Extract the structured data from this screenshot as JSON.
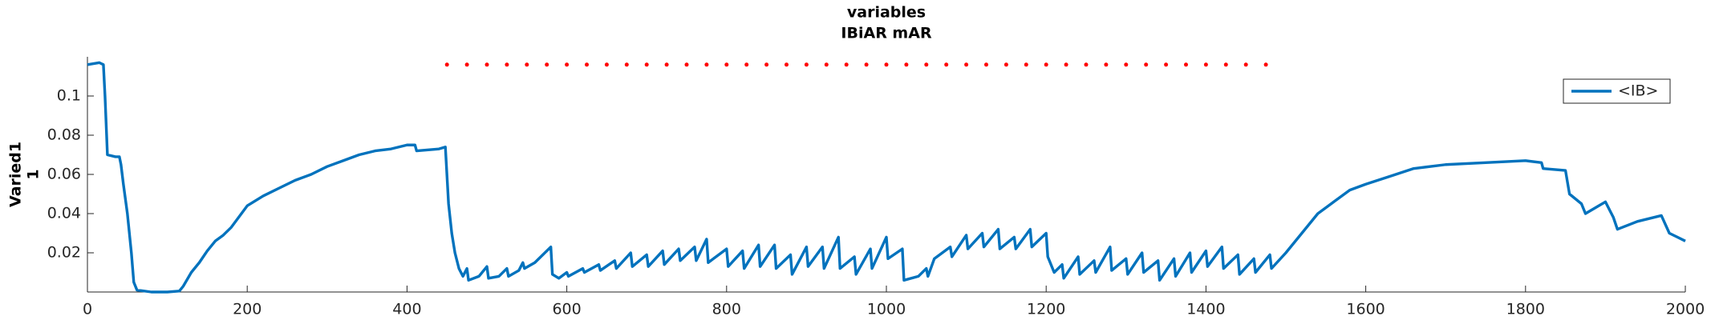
{
  "chart_data": {
    "type": "line",
    "title": [
      "variables",
      "IBiAR mAR"
    ],
    "ylabel": [
      "Varied1",
      "1"
    ],
    "xlim": [
      0,
      2000
    ],
    "xticks": [
      0,
      200,
      400,
      600,
      800,
      1000,
      1200,
      1400,
      1600,
      1800,
      2000
    ],
    "ylim": [
      0,
      0.12
    ],
    "yticks": [
      0.02,
      0.04,
      0.06,
      0.08,
      0.1
    ],
    "grid": false,
    "legend": "upper right",
    "series": [
      {
        "name": "<IB>",
        "color": "#0072bd",
        "style": "line",
        "x": [
          0,
          15,
          20,
          22,
          25,
          35,
          40,
          42,
          45,
          50,
          55,
          58,
          62,
          80,
          100,
          115,
          120,
          130,
          140,
          150,
          160,
          170,
          180,
          200,
          220,
          240,
          260,
          280,
          300,
          320,
          340,
          360,
          380,
          400,
          410,
          412,
          440,
          448,
          452,
          456,
          460,
          465,
          470,
          475,
          477,
          490,
          500,
          502,
          515,
          525,
          527,
          540,
          545,
          547,
          560,
          580,
          582,
          590,
          600,
          602,
          620,
          622,
          640,
          642,
          660,
          662,
          680,
          682,
          700,
          702,
          720,
          722,
          740,
          742,
          760,
          762,
          775,
          777,
          800,
          802,
          820,
          822,
          840,
          842,
          860,
          862,
          880,
          882,
          900,
          902,
          920,
          922,
          940,
          942,
          960,
          962,
          980,
          982,
          1000,
          1002,
          1020,
          1022,
          1040,
          1050,
          1052,
          1060,
          1080,
          1082,
          1100,
          1102,
          1120,
          1122,
          1140,
          1142,
          1160,
          1162,
          1180,
          1182,
          1200,
          1202,
          1210,
          1220,
          1222,
          1240,
          1242,
          1260,
          1262,
          1280,
          1282,
          1300,
          1302,
          1320,
          1322,
          1340,
          1342,
          1360,
          1362,
          1380,
          1382,
          1400,
          1402,
          1420,
          1422,
          1440,
          1442,
          1460,
          1462,
          1480,
          1482,
          1500,
          1520,
          1540,
          1560,
          1580,
          1600,
          1630,
          1660,
          1700,
          1750,
          1800,
          1820,
          1822,
          1850,
          1855,
          1870,
          1875,
          1900,
          1910,
          1915,
          1940,
          1970,
          1980,
          1990,
          2000
        ],
        "values": [
          0.116,
          0.117,
          0.116,
          0.1,
          0.07,
          0.069,
          0.069,
          0.065,
          0.055,
          0.04,
          0.02,
          0.005,
          0.001,
          0,
          0,
          0.0005,
          0.003,
          0.01,
          0.015,
          0.021,
          0.026,
          0.029,
          0.033,
          0.044,
          0.049,
          0.053,
          0.057,
          0.06,
          0.064,
          0.067,
          0.07,
          0.072,
          0.073,
          0.075,
          0.075,
          0.072,
          0.073,
          0.074,
          0.045,
          0.03,
          0.02,
          0.012,
          0.008,
          0.012,
          0.006,
          0.008,
          0.013,
          0.007,
          0.008,
          0.012,
          0.008,
          0.011,
          0.015,
          0.012,
          0.015,
          0.023,
          0.009,
          0.007,
          0.01,
          0.008,
          0.012,
          0.01,
          0.014,
          0.011,
          0.016,
          0.012,
          0.02,
          0.013,
          0.019,
          0.013,
          0.021,
          0.014,
          0.022,
          0.016,
          0.023,
          0.016,
          0.027,
          0.015,
          0.022,
          0.013,
          0.021,
          0.012,
          0.024,
          0.013,
          0.024,
          0.012,
          0.019,
          0.009,
          0.023,
          0.013,
          0.023,
          0.012,
          0.028,
          0.012,
          0.018,
          0.009,
          0.022,
          0.012,
          0.028,
          0.017,
          0.022,
          0.006,
          0.008,
          0.012,
          0.008,
          0.017,
          0.023,
          0.018,
          0.029,
          0.022,
          0.03,
          0.023,
          0.032,
          0.022,
          0.028,
          0.022,
          0.032,
          0.023,
          0.03,
          0.018,
          0.01,
          0.014,
          0.007,
          0.018,
          0.009,
          0.016,
          0.01,
          0.023,
          0.011,
          0.017,
          0.009,
          0.02,
          0.01,
          0.016,
          0.006,
          0.017,
          0.008,
          0.02,
          0.01,
          0.021,
          0.013,
          0.023,
          0.012,
          0.019,
          0.009,
          0.017,
          0.01,
          0.019,
          0.012,
          0.02,
          0.03,
          0.04,
          0.046,
          0.052,
          0.055,
          0.059,
          0.063,
          0.065,
          0.066,
          0.067,
          0.066,
          0.063,
          0.062,
          0.05,
          0.045,
          0.04,
          0.046,
          0.038,
          0.032,
          0.036,
          0.039,
          0.03,
          0.028,
          0.026
        ]
      },
      {
        "color": "#ff0000",
        "style": "dots",
        "x": [
          450,
          475,
          500,
          525,
          550,
          575,
          600,
          625,
          650,
          675,
          700,
          725,
          750,
          775,
          800,
          825,
          850,
          875,
          900,
          925,
          950,
          975,
          1000,
          1025,
          1050,
          1075,
          1100,
          1125,
          1150,
          1175,
          1200,
          1225,
          1250,
          1275,
          1300,
          1325,
          1350,
          1375,
          1400,
          1425,
          1450,
          1475
        ],
        "values": [
          0.116,
          0.116,
          0.116,
          0.116,
          0.116,
          0.116,
          0.116,
          0.116,
          0.116,
          0.116,
          0.116,
          0.116,
          0.116,
          0.116,
          0.116,
          0.116,
          0.116,
          0.116,
          0.116,
          0.116,
          0.116,
          0.116,
          0.116,
          0.116,
          0.116,
          0.116,
          0.116,
          0.116,
          0.116,
          0.116,
          0.116,
          0.116,
          0.116,
          0.116,
          0.116,
          0.116,
          0.116,
          0.116,
          0.116,
          0.116,
          0.116,
          0.116
        ]
      }
    ]
  }
}
